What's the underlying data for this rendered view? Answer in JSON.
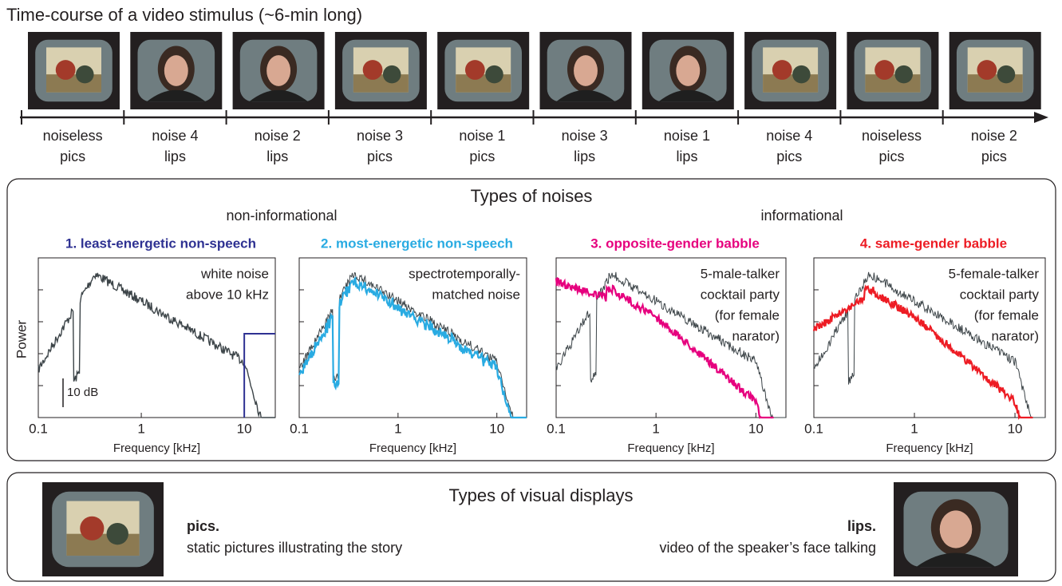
{
  "timeline": {
    "title": "Time-course of a video stimulus (~6-min long)",
    "segments": [
      {
        "noise": "noiseless",
        "display": "pics"
      },
      {
        "noise": "noise 4",
        "display": "lips"
      },
      {
        "noise": "noise 2",
        "display": "lips"
      },
      {
        "noise": "noise 3",
        "display": "pics"
      },
      {
        "noise": "noise 1",
        "display": "pics"
      },
      {
        "noise": "noise 3",
        "display": "lips"
      },
      {
        "noise": "noise 1",
        "display": "lips"
      },
      {
        "noise": "noise 4",
        "display": "pics"
      },
      {
        "noise": "noiseless",
        "display": "pics"
      },
      {
        "noise": "noise 2",
        "display": "pics"
      }
    ]
  },
  "noises": {
    "title": "Types of noises",
    "groups": [
      "non-informational",
      "informational"
    ],
    "y_label": "Power",
    "scale_label": "10 dB",
    "panels": [
      {
        "title": "1. least-energetic non-speech",
        "color": "#2e3192",
        "annotation": [
          "white noise",
          "above 10 kHz"
        ],
        "x_label": "Frequency [kHz]",
        "xlim": [
          0.1,
          20
        ],
        "xticks": [
          0.1,
          1,
          10
        ]
      },
      {
        "title": "2. most-energetic non-speech",
        "color": "#29abe2",
        "annotation": [
          "spectrotemporally-",
          "matched noise"
        ],
        "x_label": "Frequency [kHz]",
        "xlim": [
          0.1,
          20
        ],
        "xticks": [
          0.1,
          1,
          10
        ]
      },
      {
        "title": "3. opposite-gender babble",
        "color": "#e6007e",
        "annotation": [
          "5-male-talker",
          "cocktail party",
          "(for female",
          "narator)"
        ],
        "x_label": "Frequency [kHz]",
        "xlim": [
          0.1,
          20
        ],
        "xticks": [
          0.1,
          1,
          10
        ]
      },
      {
        "title": "4. same-gender babble",
        "color": "#ed1c24",
        "annotation": [
          "5-female-talker",
          "cocktail party",
          "(for female",
          "narator)"
        ],
        "x_label": "Frequency [kHz]",
        "xlim": [
          0.1,
          20
        ],
        "xticks": [
          0.1,
          1,
          10
        ]
      }
    ]
  },
  "displays": {
    "title": "Types of visual displays",
    "items": [
      {
        "name": "pics.",
        "description": "static pictures illustrating the story"
      },
      {
        "name": "lips.",
        "description": "video of the speaker’s face talking"
      }
    ]
  }
}
